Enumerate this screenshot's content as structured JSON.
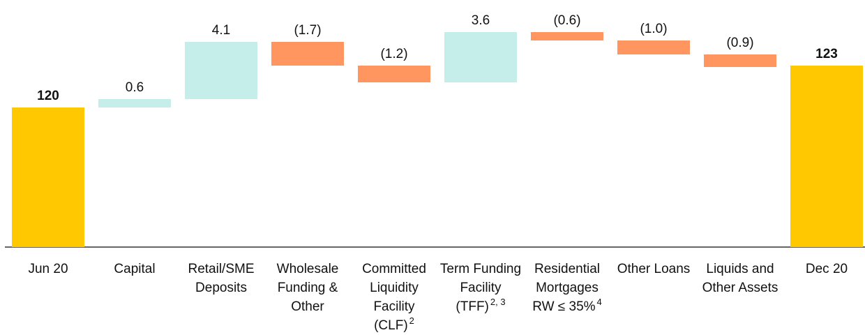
{
  "chart_data": {
    "type": "waterfall",
    "categories": [
      "Jun 20",
      "Capital",
      "Retail/SME Deposits",
      "Wholesale Funding & Other",
      "Committed Liquidity Facility (CLF)",
      "Term Funding Facility (TFF)",
      "Residential Mortgages RW ≤ 35%",
      "Other Loans",
      "Liquids and Other Assets",
      "Dec 20"
    ],
    "category_notes": [
      null,
      null,
      null,
      null,
      "2",
      "2, 3",
      "4",
      null,
      null,
      null
    ],
    "measure": [
      "total",
      "relative",
      "relative",
      "relative",
      "relative",
      "relative",
      "relative",
      "relative",
      "relative",
      "total"
    ],
    "values": [
      120,
      0.6,
      4.1,
      -1.7,
      -1.2,
      3.6,
      -0.6,
      -1.0,
      -0.9,
      123
    ],
    "value_labels": [
      "120",
      "0.6",
      "4.1",
      "(1.7)",
      "(1.2)",
      "3.6",
      "(0.6)",
      "(1.0)",
      "(0.9)",
      "123"
    ],
    "colors": {
      "total": "#ffc800",
      "increase": "#c5eeea",
      "decrease": "#ff9660"
    },
    "ylim": [
      110,
      127.7
    ]
  }
}
